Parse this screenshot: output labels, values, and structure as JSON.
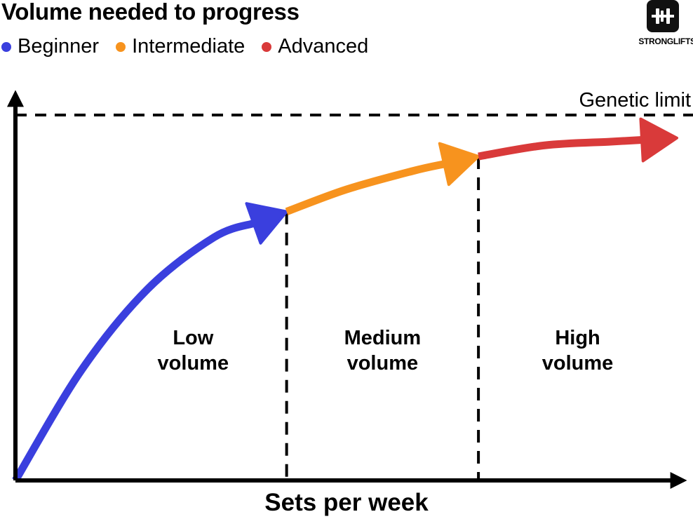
{
  "title": "Volume needed to progress",
  "legend": [
    {
      "label": "Beginner",
      "color": "#3a3fde"
    },
    {
      "label": "Intermediate",
      "color": "#f7931e"
    },
    {
      "label": "Advanced",
      "color": "#d93a3a"
    }
  ],
  "logo": {
    "text": "STRONGLIFTS",
    "icon": "barbell-icon"
  },
  "chart_data": {
    "type": "line",
    "xlabel": "Sets per week",
    "ylabel": "",
    "grid": false,
    "reference_line": {
      "label": "Genetic limit",
      "style": "dashed",
      "y": 1.0
    },
    "series": [
      {
        "name": "Beginner",
        "color": "#3a3fde",
        "x": [
          0.0,
          0.1,
          0.2,
          0.3,
          0.41
        ],
        "y": [
          0.0,
          0.3,
          0.52,
          0.66,
          0.73
        ]
      },
      {
        "name": "Intermediate",
        "color": "#f7931e",
        "x": [
          0.41,
          0.5,
          0.6,
          0.7
        ],
        "y": [
          0.73,
          0.79,
          0.84,
          0.88
        ]
      },
      {
        "name": "Advanced",
        "color": "#d93a3a",
        "x": [
          0.7,
          0.8,
          0.9,
          1.0
        ],
        "y": [
          0.88,
          0.91,
          0.92,
          0.93
        ]
      }
    ],
    "regions": [
      {
        "label_line1": "Low",
        "label_line2": "volume",
        "x_start": 0.0,
        "x_end": 0.41
      },
      {
        "label_line1": "Medium",
        "label_line2": "volume",
        "x_start": 0.41,
        "x_end": 0.7
      },
      {
        "label_line1": "High",
        "label_line2": "volume",
        "x_start": 0.7,
        "x_end": 1.0
      }
    ]
  }
}
